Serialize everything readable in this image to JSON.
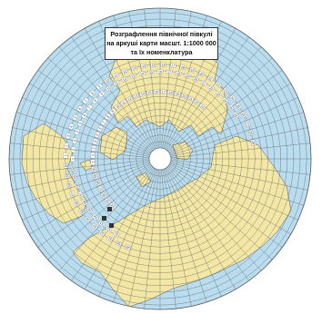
{
  "title": {
    "line1": "Розграфлення північної півкулі",
    "line2": "на аркуші карти масшт. 1:1000 000",
    "line3": "та їх номенклатура"
  },
  "colors": {
    "ocean": "#b9dcef",
    "land": "#f3e7a6",
    "grid": "#5a5a5a",
    "coast": "#555555",
    "sheet": "#ffffff",
    "highlight": "#333333"
  },
  "zone_letters": [
    "A",
    "B",
    "C",
    "D",
    "E",
    "F",
    "G",
    "H",
    "I",
    "K",
    "L",
    "M",
    "N",
    "O",
    "P",
    "Q",
    "R",
    "S",
    "T",
    "U",
    "V"
  ],
  "column_numbers": [
    "31",
    "32",
    "33",
    "34",
    "35",
    "36",
    "37",
    "38",
    "39",
    "40",
    "41",
    "42",
    "43",
    "44",
    "45",
    "46",
    "47",
    "48",
    "49",
    "50",
    "51",
    "52",
    "53",
    "54",
    "55",
    "56",
    "57",
    "58",
    "59",
    "60",
    "1",
    "2",
    "3",
    "4",
    "5",
    "6",
    "7",
    "8",
    "9",
    "10",
    "11",
    "12",
    "13",
    "14",
    "15",
    "16",
    "17",
    "18",
    "19",
    "20",
    "21",
    "22",
    "23",
    "24",
    "25",
    "26",
    "27",
    "28",
    "29",
    "30"
  ]
}
